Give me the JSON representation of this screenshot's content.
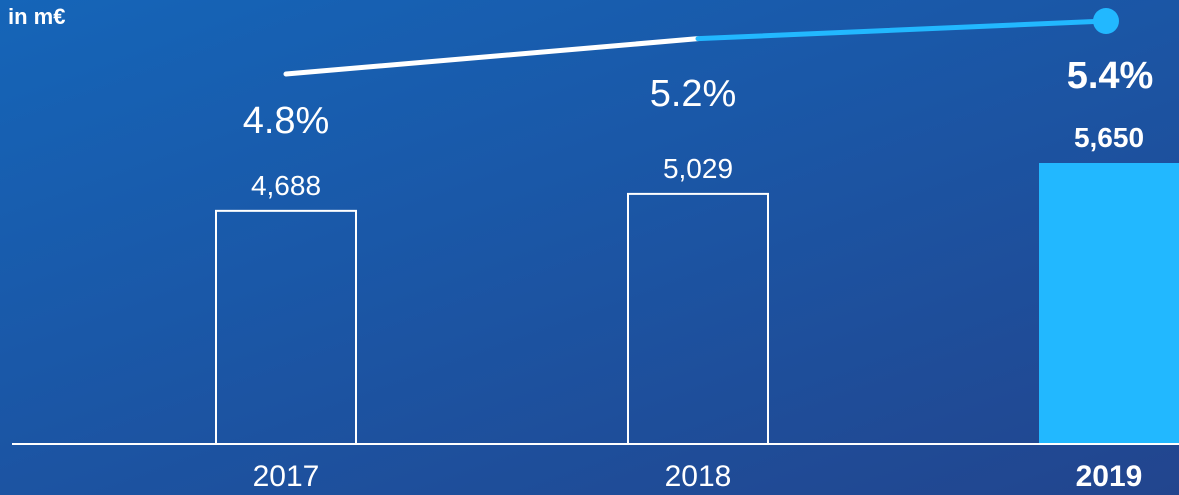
{
  "unit_label": "in m€",
  "colors": {
    "background_top": "#1565b8",
    "background_bottom": "#22458e",
    "highlight": "#22b8ff",
    "outline": "#ffffff"
  },
  "chart_data": [
    {
      "type": "bar",
      "categories": [
        "2017",
        "2018",
        "2019"
      ],
      "values": [
        4688,
        5029,
        5650
      ],
      "value_labels": [
        "4,688",
        "5,029",
        "5,650"
      ],
      "highlight_index": 2,
      "ylim": [
        0,
        5650
      ],
      "grid": false,
      "xlabel": "",
      "ylabel": ""
    },
    {
      "type": "line",
      "categories": [
        "2017",
        "2018",
        "2019"
      ],
      "values": [
        4.8,
        5.2,
        5.4
      ],
      "value_labels": [
        "4.8%",
        "5.2%",
        "5.4%"
      ],
      "highlight_index": 2,
      "grid": false,
      "xlabel": "",
      "ylabel": ""
    }
  ]
}
